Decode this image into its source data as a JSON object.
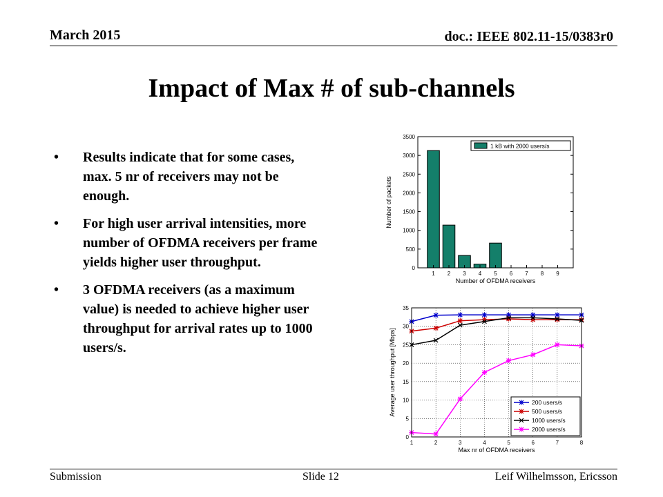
{
  "header": {
    "date": "March 2015",
    "doc_id": "doc.: IEEE 802.11-15/0383r0"
  },
  "title": "Impact of Max # of sub-channels",
  "bullets": [
    "Results indicate that for some cases, max. 5 nr of receivers may not be enough.",
    "For high user arrival intensities, more number of OFDMA receivers per frame yields higher user throughput.",
    "3 OFDMA receivers (as a maximum value) is needed to achieve higher user throughput for arrival rates up to 1000 users/s."
  ],
  "bullet_symbol": "•",
  "footer": {
    "left": "Submission",
    "center": "Slide 12",
    "right": "Leif Wilhelmsson, Ericsson"
  },
  "chart_data": [
    {
      "type": "bar",
      "categories": [
        "1",
        "2",
        "3",
        "4",
        "5",
        "6",
        "7",
        "8",
        "9"
      ],
      "values": [
        3130,
        1140,
        330,
        100,
        660,
        0,
        0,
        0,
        0
      ],
      "xlabel": "Number of OFDMA receivers",
      "ylabel": "Number of packets",
      "ylim": [
        0,
        3500
      ],
      "yticks": [
        0,
        500,
        1000,
        1500,
        2000,
        2500,
        3000,
        3500
      ],
      "series_name": "1 kB with 2000 users/s",
      "bar_color": "#147f6a",
      "legend_position": "top-right",
      "grid": false
    },
    {
      "type": "line",
      "x": [
        1,
        2,
        3,
        4,
        5,
        6,
        7,
        8
      ],
      "xlim": [
        1,
        8
      ],
      "ylim": [
        0,
        35
      ],
      "yticks": [
        0,
        5,
        10,
        15,
        20,
        25,
        30,
        35
      ],
      "xlabel": "Max nr of OFDMA receivers",
      "ylabel": "Average user throughput [Mbps]",
      "legend_position": "bottom-right",
      "grid": true,
      "series": [
        {
          "name": "200 users/s",
          "color": "#0000cc",
          "marker": "*",
          "values": [
            31.3,
            33.0,
            33.1,
            33.1,
            33.1,
            33.1,
            33.1,
            33.1
          ]
        },
        {
          "name": "500 users/s",
          "color": "#cc0000",
          "marker": "*",
          "values": [
            28.7,
            29.5,
            31.5,
            31.8,
            32.0,
            31.8,
            31.8,
            31.8
          ]
        },
        {
          "name": "1000 users/s",
          "color": "#000000",
          "marker": "x",
          "values": [
            25.0,
            26.2,
            30.3,
            31.3,
            32.3,
            32.3,
            32.0,
            31.6
          ]
        },
        {
          "name": "2000 users/s",
          "color": "#ff00ff",
          "marker": "*",
          "values": [
            1.2,
            0.8,
            10.3,
            17.5,
            20.7,
            22.3,
            25.0,
            24.7
          ]
        }
      ]
    }
  ]
}
